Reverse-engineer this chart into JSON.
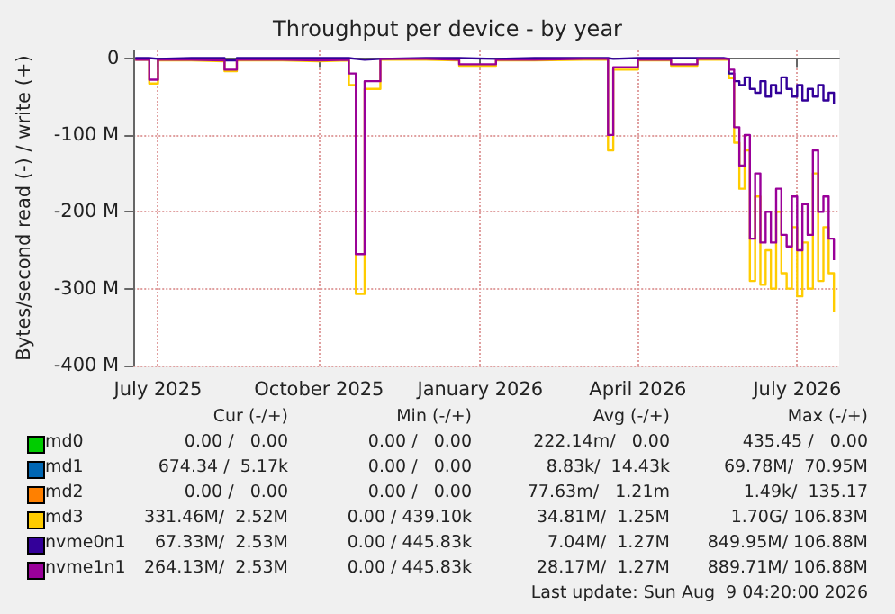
{
  "chart_data": {
    "type": "step",
    "title": "Throughput per device - by year",
    "ylabel": "Bytes/second read (-) / write (+)",
    "x": [
      "2025-06-18",
      "2025-06-26",
      "2025-07-01",
      "2025-07-20",
      "2025-08-08",
      "2025-08-15",
      "2025-09-10",
      "2025-10-01",
      "2025-10-18",
      "2025-10-22",
      "2025-10-27",
      "2025-11-05",
      "2025-12-01",
      "2025-12-20",
      "2026-01-10",
      "2026-02-01",
      "2026-03-01",
      "2026-03-15",
      "2026-03-18",
      "2026-04-01",
      "2026-04-20",
      "2026-05-05",
      "2026-05-20",
      "2026-05-23",
      "2026-05-26",
      "2026-05-29",
      "2026-06-01",
      "2026-06-04",
      "2026-06-07",
      "2026-06-10",
      "2026-06-13",
      "2026-06-16",
      "2026-06-19",
      "2026-06-22",
      "2026-06-25",
      "2026-06-28",
      "2026-07-01",
      "2026-07-04",
      "2026-07-07",
      "2026-07-10",
      "2026-07-13",
      "2026-07-16",
      "2026-07-19",
      "2026-07-22"
    ],
    "series": [
      {
        "name": "md0",
        "color": "#00cc00",
        "values": [
          null,
          null,
          null,
          null,
          null,
          null,
          null,
          null,
          null,
          null,
          null,
          null,
          null,
          null,
          null,
          null,
          null,
          null,
          null,
          null,
          null,
          null,
          null,
          null,
          null,
          null,
          null,
          null,
          null,
          null,
          null,
          null,
          null,
          null,
          null,
          null,
          null,
          null,
          null,
          null,
          null,
          null,
          null,
          null
        ]
      },
      {
        "name": "md1",
        "color": "#0066b3",
        "values": [
          null,
          null,
          null,
          null,
          null,
          null,
          null,
          null,
          null,
          null,
          null,
          null,
          null,
          null,
          null,
          null,
          null,
          null,
          null,
          null,
          null,
          null,
          null,
          null,
          null,
          null,
          null,
          null,
          null,
          null,
          null,
          null,
          null,
          null,
          null,
          null,
          null,
          null,
          null,
          null,
          null,
          null,
          null,
          null
        ]
      },
      {
        "name": "md2",
        "color": "#ff8000",
        "values": [
          null,
          null,
          null,
          null,
          null,
          null,
          null,
          null,
          null,
          null,
          null,
          null,
          null,
          null,
          null,
          null,
          null,
          null,
          null,
          null,
          null,
          null,
          null,
          null,
          null,
          null,
          null,
          null,
          null,
          null,
          null,
          null,
          null,
          null,
          null,
          null,
          null,
          null,
          null,
          null,
          null,
          null,
          null,
          null
        ]
      },
      {
        "name": "md3",
        "color": "#ffcc00",
        "values": [
          -2,
          -33,
          -3,
          -4,
          -17,
          -3,
          -4,
          -3,
          -35,
          -307,
          -40,
          -2,
          -3,
          -10,
          -3,
          -2,
          -2,
          -120,
          -15,
          -3,
          -10,
          -2,
          -2,
          -26,
          -110,
          -170,
          -120,
          -290,
          -180,
          -295,
          -250,
          -300,
          -200,
          -280,
          -300,
          -220,
          -310,
          -240,
          -300,
          -150,
          -290,
          -220,
          -280,
          -330
        ]
      },
      {
        "name": "nvme0n1",
        "color": "#330099",
        "values": [
          0,
          -1,
          0,
          0,
          -3,
          0,
          0,
          0,
          -1,
          -2,
          -1,
          0,
          0,
          -1,
          0,
          0,
          0,
          -1,
          0,
          0,
          0,
          0,
          -1,
          -20,
          -30,
          -35,
          -25,
          -40,
          -45,
          -30,
          -50,
          -35,
          -45,
          -25,
          -40,
          -50,
          -35,
          -55,
          -40,
          -50,
          -35,
          -55,
          -45,
          -60
        ]
      },
      {
        "name": "nvme1n1",
        "color": "#990099",
        "values": [
          -2,
          -28,
          -2,
          -3,
          -15,
          -2,
          -3,
          -2,
          -20,
          -255,
          -30,
          -1,
          -2,
          -8,
          -2,
          -1,
          -1,
          -100,
          -12,
          -2,
          -8,
          -1,
          -1,
          -15,
          -90,
          -140,
          -100,
          -235,
          -150,
          -240,
          -200,
          -240,
          -170,
          -230,
          -245,
          -180,
          -250,
          -190,
          -230,
          -120,
          -200,
          -180,
          -235,
          -263
        ]
      }
    ],
    "xlim": [
      "2025-06-17",
      "2026-07-25"
    ],
    "xticks": [
      {
        "value": "2025-07-01",
        "label": "July 2025"
      },
      {
        "value": "2025-10-01",
        "label": "October 2025"
      },
      {
        "value": "2026-01-01",
        "label": "January 2026"
      },
      {
        "value": "2026-04-01",
        "label": "April 2026"
      },
      {
        "value": "2026-07-01",
        "label": "July 2026"
      }
    ],
    "ylim": [
      -400,
      10
    ],
    "yticks": [
      {
        "value": -400,
        "label": "-400 M"
      },
      {
        "value": -300,
        "label": "-300 M"
      },
      {
        "value": -200,
        "label": "-200 M"
      },
      {
        "value": -100,
        "label": "-100 M"
      },
      {
        "value": 0,
        "label": "0"
      }
    ],
    "grid": true,
    "legend": "bottom",
    "annotations": [
      "Cur (-/+)",
      "Min (-/+)",
      "Avg (-/+)",
      "Max (-/+)",
      "0.00 /   0.00",
      "0.00 /   0.00",
      "222.14m/   0.00",
      "435.45 /   0.00",
      "674.34 /  5.17k",
      "0.00 /   0.00",
      "8.83k/  14.43k",
      "69.78M/  70.95M",
      "0.00 /   0.00",
      "0.00 /   0.00",
      "77.63m/   1.21m",
      "1.49k/  135.17",
      "331.46M/  2.52M",
      "0.00 / 439.10k",
      "34.81M/  1.25M",
      "1.70G/ 106.83M",
      "67.33M/  2.53M",
      "0.00 / 445.83k",
      "7.04M/  1.27M",
      "849.95M/ 106.88M",
      "264.13M/  2.53M",
      "0.00 / 445.83k",
      "28.17M/  1.27M",
      "889.71M/ 106.88M",
      "Last update: Sun Aug  9 04:20:00 2026"
    ]
  }
}
